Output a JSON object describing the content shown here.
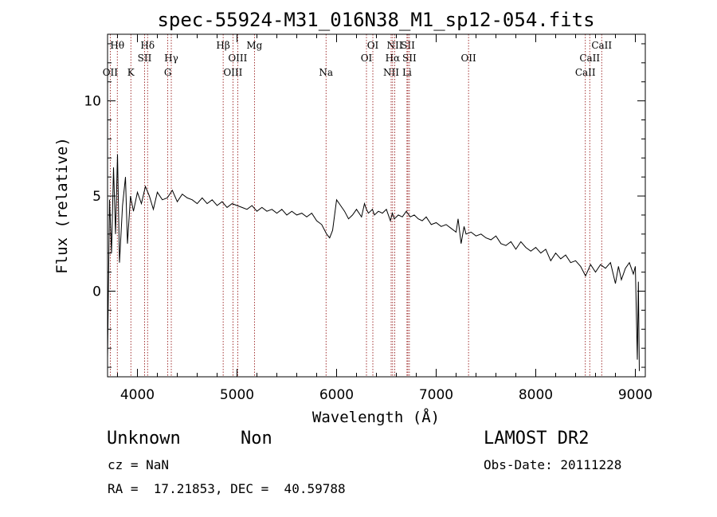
{
  "chart_data": {
    "type": "line",
    "title": "spec-55924-M31_016N38_M1_sp12-054.fits",
    "xlabel": "Wavelength (Å)",
    "ylabel": "Flux (relative)",
    "xlim": [
      3700,
      9100
    ],
    "ylim": [
      -4.5,
      13.5
    ],
    "x_ticks": [
      4000,
      5000,
      6000,
      7000,
      8000,
      9000
    ],
    "y_ticks": [
      0,
      5,
      10
    ],
    "grid": false,
    "series": [
      {
        "x": [
          3700,
          3720,
          3740,
          3760,
          3780,
          3800,
          3820,
          3850,
          3880,
          3900,
          3930,
          3960,
          4000,
          4040,
          4080,
          4120,
          4160,
          4200,
          4250,
          4300,
          4350,
          4400,
          4450,
          4500,
          4550,
          4600,
          4650,
          4700,
          4750,
          4800,
          4850,
          4900,
          4950,
          5000,
          5050,
          5100,
          5150,
          5200,
          5250,
          5300,
          5350,
          5400,
          5450,
          5500,
          5550,
          5600,
          5650,
          5700,
          5750,
          5800,
          5850,
          5900,
          5930,
          5960,
          6000,
          6040,
          6080,
          6120,
          6160,
          6200,
          6250,
          6280,
          6300,
          6320,
          6340,
          6360,
          6380,
          6420,
          6460,
          6500,
          6540,
          6560,
          6580,
          6620,
          6660,
          6700,
          6740,
          6780,
          6820,
          6860,
          6900,
          6950,
          7000,
          7050,
          7100,
          7150,
          7200,
          7220,
          7250,
          7280,
          7300,
          7350,
          7400,
          7450,
          7500,
          7550,
          7600,
          7650,
          7700,
          7750,
          7800,
          7850,
          7900,
          7950,
          8000,
          8050,
          8100,
          8150,
          8200,
          8250,
          8300,
          8350,
          8400,
          8450,
          8500,
          8550,
          8600,
          8650,
          8700,
          8750,
          8800,
          8830,
          8860,
          8900,
          8940,
          8980,
          9000,
          9020,
          9030,
          9040
        ],
        "y": [
          -3.5,
          4.8,
          2.0,
          6.5,
          3.0,
          7.2,
          1.5,
          4.5,
          6.0,
          2.5,
          5.0,
          4.2,
          5.2,
          4.6,
          5.5,
          5.0,
          4.3,
          5.2,
          4.8,
          4.9,
          5.3,
          4.7,
          5.1,
          4.9,
          4.8,
          4.6,
          4.9,
          4.6,
          4.8,
          4.5,
          4.7,
          4.4,
          4.6,
          4.5,
          4.4,
          4.3,
          4.5,
          4.2,
          4.4,
          4.2,
          4.3,
          4.1,
          4.3,
          4.0,
          4.2,
          4.0,
          4.1,
          3.9,
          4.1,
          3.7,
          3.5,
          3.0,
          2.8,
          3.2,
          4.8,
          4.5,
          4.2,
          3.8,
          4.0,
          4.3,
          3.9,
          4.6,
          4.3,
          4.1,
          4.2,
          4.3,
          4.0,
          4.2,
          4.1,
          4.3,
          3.7,
          4.1,
          3.8,
          4.0,
          3.9,
          4.2,
          3.9,
          4.0,
          3.8,
          3.7,
          3.9,
          3.5,
          3.6,
          3.4,
          3.5,
          3.3,
          3.1,
          3.8,
          2.5,
          3.4,
          3.0,
          3.1,
          2.9,
          3.0,
          2.8,
          2.7,
          2.9,
          2.5,
          2.4,
          2.6,
          2.2,
          2.6,
          2.3,
          2.1,
          2.3,
          2.0,
          2.2,
          1.6,
          2.0,
          1.7,
          1.9,
          1.5,
          1.6,
          1.3,
          0.8,
          1.4,
          1.0,
          1.4,
          1.2,
          1.5,
          0.4,
          1.3,
          0.6,
          1.2,
          1.5,
          0.9,
          1.3,
          -3.6,
          0.5,
          -4.2
        ]
      }
    ],
    "spectral_lines": [
      {
        "name": "Hθ",
        "wavelength": 3798,
        "label_row": 1
      },
      {
        "name": "OII",
        "wavelength": 3727,
        "label_row": 3
      },
      {
        "name": "K",
        "wavelength": 3934,
        "label_row": 3
      },
      {
        "name": "Hδ",
        "wavelength": 4102,
        "label_row": 1
      },
      {
        "name": "SII",
        "wavelength": 4072,
        "label_row": 2
      },
      {
        "name": "Hγ",
        "wavelength": 4340,
        "label_row": 2
      },
      {
        "name": "G",
        "wavelength": 4305,
        "label_row": 3
      },
      {
        "name": "Hβ",
        "wavelength": 4861,
        "label_row": 1
      },
      {
        "name": "OIII",
        "wavelength": 5007,
        "label_row": 2
      },
      {
        "name": "OIII",
        "wavelength": 4959,
        "label_row": 3
      },
      {
        "name": "Mg",
        "wavelength": 5175,
        "label_row": 1
      },
      {
        "name": "Na",
        "wavelength": 5894,
        "label_row": 3
      },
      {
        "name": "OI",
        "wavelength": 6364,
        "label_row": 1
      },
      {
        "name": "OI",
        "wavelength": 6300,
        "label_row": 2
      },
      {
        "name": "NII",
        "wavelength": 6584,
        "label_row": 1
      },
      {
        "name": "SII",
        "wavelength": 6716,
        "label_row": 1
      },
      {
        "name": "Hα",
        "wavelength": 6563,
        "label_row": 2
      },
      {
        "name": "SII",
        "wavelength": 6731,
        "label_row": 2
      },
      {
        "name": "NII",
        "wavelength": 6548,
        "label_row": 3
      },
      {
        "name": "Li",
        "wavelength": 6707,
        "label_row": 3
      },
      {
        "name": "OII",
        "wavelength": 7325,
        "label_row": 2
      },
      {
        "name": "CaII",
        "wavelength": 8662,
        "label_row": 1
      },
      {
        "name": "CaII",
        "wavelength": 8542,
        "label_row": 2
      },
      {
        "name": "CaII",
        "wavelength": 8498,
        "label_row": 3
      }
    ]
  },
  "info": {
    "class": "Unknown",
    "subclass": "Non",
    "survey": "LAMOST DR2",
    "cz_line": "cz = NaN",
    "obs_date_line": "Obs-Date: 20111228",
    "radec_line": "RA =  17.21853, DEC =  40.59788"
  },
  "colors": {
    "spectrum": "#000000",
    "line_marker": "#8b0000",
    "axes": "#000000",
    "background": "#ffffff"
  }
}
